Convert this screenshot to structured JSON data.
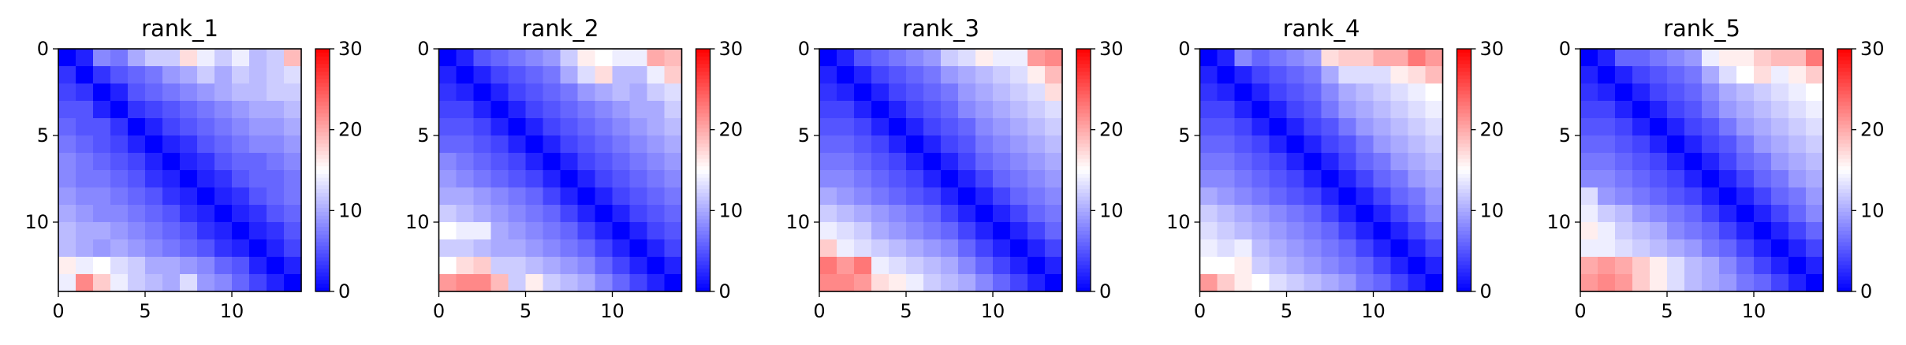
{
  "figure": {
    "panel_count": 5
  },
  "colormap": {
    "name": "bwr",
    "low": "#0000ff",
    "mid": "#ffffff",
    "high": "#ff0000",
    "vmin": 0,
    "vmax": 30
  },
  "chart_data": [
    {
      "type": "heatmap",
      "title": "rank_1",
      "xlabel": "",
      "ylabel": "",
      "x_ticks": [
        0,
        5,
        10
      ],
      "y_ticks": [
        0,
        5,
        10
      ],
      "colorbar_ticks": [
        0,
        10,
        20,
        30
      ],
      "clim": [
        0,
        30
      ],
      "values": [
        [
          0,
          2,
          8,
          7,
          10,
          12,
          12,
          17,
          14,
          12,
          14,
          11,
          12,
          19
        ],
        [
          3,
          0,
          3,
          5,
          6,
          7,
          9,
          10,
          12,
          10,
          12,
          11,
          12,
          13
        ],
        [
          4,
          3,
          0,
          2,
          5,
          6,
          7,
          8,
          9,
          10,
          11,
          11,
          12,
          12
        ],
        [
          5,
          5,
          2,
          0,
          3,
          4,
          5,
          6,
          7,
          8,
          9,
          10,
          10,
          11
        ],
        [
          6,
          5,
          5,
          3,
          0,
          2,
          4,
          5,
          6,
          7,
          8,
          9,
          9,
          10
        ],
        [
          7,
          6,
          5,
          4,
          2,
          0,
          2,
          3,
          5,
          6,
          7,
          8,
          8,
          9
        ],
        [
          8,
          7,
          6,
          5,
          4,
          2,
          0,
          2,
          3,
          5,
          6,
          6,
          7,
          8
        ],
        [
          8,
          7,
          7,
          6,
          5,
          3,
          2,
          0,
          2,
          3,
          5,
          6,
          6,
          7
        ],
        [
          9,
          8,
          8,
          7,
          6,
          5,
          3,
          2,
          0,
          2,
          3,
          5,
          6,
          7
        ],
        [
          10,
          9,
          8,
          8,
          7,
          6,
          5,
          3,
          2,
          0,
          2,
          3,
          5,
          6
        ],
        [
          11,
          10,
          10,
          9,
          8,
          7,
          6,
          5,
          3,
          2,
          0,
          2,
          3,
          5
        ],
        [
          11,
          10,
          9,
          10,
          9,
          8,
          7,
          6,
          5,
          3,
          2,
          0,
          2,
          4
        ],
        [
          16,
          14,
          15,
          13,
          12,
          10,
          10,
          9,
          8,
          6,
          5,
          2,
          0,
          2
        ],
        [
          14,
          22,
          18,
          14,
          12,
          11,
          10,
          13,
          9,
          8,
          6,
          4,
          2,
          0
        ]
      ]
    },
    {
      "type": "heatmap",
      "title": "rank_2",
      "xlabel": "",
      "ylabel": "",
      "x_ticks": [
        0,
        5,
        10
      ],
      "y_ticks": [
        0,
        5,
        10
      ],
      "colorbar_ticks": [
        0,
        10,
        20,
        30
      ],
      "clim": [
        0,
        30
      ],
      "values": [
        [
          0,
          2,
          5,
          6,
          7,
          8,
          9,
          12,
          16,
          15,
          14,
          14,
          20,
          19
        ],
        [
          2,
          0,
          2,
          4,
          5,
          6,
          7,
          10,
          13,
          17,
          11,
          11,
          14,
          18
        ],
        [
          3,
          2,
          0,
          2,
          4,
          5,
          6,
          7,
          9,
          10,
          11,
          10,
          12,
          13
        ],
        [
          4,
          4,
          2,
          0,
          2,
          4,
          5,
          6,
          7,
          8,
          9,
          10,
          10,
          12
        ],
        [
          5,
          5,
          4,
          2,
          0,
          2,
          4,
          5,
          6,
          7,
          8,
          9,
          10,
          11
        ],
        [
          6,
          6,
          5,
          4,
          2,
          0,
          2,
          4,
          5,
          6,
          7,
          8,
          9,
          10
        ],
        [
          8,
          7,
          6,
          5,
          4,
          2,
          0,
          2,
          4,
          5,
          6,
          7,
          8,
          9
        ],
        [
          9,
          8,
          7,
          6,
          5,
          4,
          2,
          0,
          2,
          4,
          5,
          6,
          7,
          8
        ],
        [
          10,
          10,
          9,
          8,
          7,
          6,
          4,
          2,
          0,
          2,
          4,
          5,
          6,
          7
        ],
        [
          12,
          11,
          10,
          9,
          8,
          7,
          6,
          4,
          2,
          0,
          2,
          4,
          5,
          6
        ],
        [
          15,
          14,
          14,
          10,
          9,
          8,
          7,
          6,
          4,
          2,
          0,
          2,
          4,
          5
        ],
        [
          12,
          12,
          11,
          10,
          10,
          9,
          8,
          7,
          6,
          4,
          2,
          0,
          2,
          4
        ],
        [
          15,
          17,
          18,
          12,
          12,
          11,
          10,
          9,
          8,
          6,
          4,
          2,
          0,
          2
        ],
        [
          21,
          22,
          22,
          19,
          12,
          16,
          12,
          11,
          10,
          8,
          6,
          4,
          2,
          0
        ]
      ]
    },
    {
      "type": "heatmap",
      "title": "rank_3",
      "xlabel": "",
      "ylabel": "",
      "x_ticks": [
        0,
        5,
        10
      ],
      "y_ticks": [
        0,
        5,
        10
      ],
      "colorbar_ticks": [
        0,
        10,
        20,
        30
      ],
      "clim": [
        0,
        30
      ],
      "values": [
        [
          0,
          2,
          5,
          6,
          7,
          8,
          9,
          12,
          13,
          16,
          14,
          14,
          21,
          22
        ],
        [
          2,
          0,
          2,
          4,
          5,
          6,
          7,
          9,
          10,
          11,
          12,
          13,
          16,
          19
        ],
        [
          3,
          2,
          0,
          2,
          4,
          5,
          6,
          7,
          9,
          10,
          11,
          12,
          13,
          17
        ],
        [
          4,
          4,
          2,
          0,
          2,
          4,
          5,
          6,
          8,
          9,
          10,
          11,
          12,
          13
        ],
        [
          5,
          5,
          4,
          2,
          0,
          2,
          4,
          5,
          6,
          8,
          9,
          10,
          11,
          12
        ],
        [
          6,
          6,
          5,
          4,
          2,
          0,
          2,
          4,
          5,
          7,
          8,
          9,
          10,
          11
        ],
        [
          7,
          7,
          6,
          5,
          4,
          2,
          0,
          2,
          4,
          6,
          7,
          8,
          9,
          10
        ],
        [
          8,
          8,
          7,
          6,
          5,
          4,
          2,
          0,
          2,
          4,
          6,
          7,
          8,
          9
        ],
        [
          10,
          9,
          8,
          7,
          6,
          5,
          4,
          2,
          0,
          2,
          4,
          6,
          7,
          8
        ],
        [
          12,
          11,
          10,
          9,
          8,
          7,
          6,
          4,
          2,
          0,
          2,
          4,
          6,
          7
        ],
        [
          14,
          13,
          12,
          10,
          9,
          8,
          7,
          6,
          4,
          2,
          0,
          2,
          4,
          6
        ],
        [
          18,
          14,
          13,
          12,
          11,
          10,
          9,
          8,
          6,
          4,
          2,
          0,
          2,
          4
        ],
        [
          23,
          21,
          23,
          14,
          13,
          12,
          11,
          10,
          8,
          6,
          4,
          2,
          0,
          2
        ],
        [
          22,
          22,
          21,
          17,
          16,
          14,
          12,
          11,
          10,
          8,
          6,
          4,
          2,
          0
        ]
      ]
    },
    {
      "type": "heatmap",
      "title": "rank_4",
      "xlabel": "",
      "ylabel": "",
      "x_ticks": [
        0,
        5,
        10
      ],
      "y_ticks": [
        0,
        5,
        10
      ],
      "colorbar_ticks": [
        0,
        10,
        20,
        30
      ],
      "clim": [
        0,
        30
      ],
      "values": [
        [
          0,
          2,
          8,
          6,
          7,
          8,
          9,
          17,
          18,
          18,
          20,
          20,
          23,
          21
        ],
        [
          2,
          0,
          2,
          4,
          5,
          6,
          7,
          10,
          13,
          13,
          13,
          16,
          17,
          19
        ],
        [
          3,
          2,
          0,
          2,
          4,
          5,
          6,
          8,
          10,
          11,
          12,
          13,
          14,
          15
        ],
        [
          4,
          4,
          2,
          0,
          2,
          4,
          5,
          7,
          9,
          10,
          11,
          12,
          13,
          14
        ],
        [
          5,
          5,
          4,
          2,
          0,
          2,
          4,
          5,
          7,
          9,
          10,
          11,
          12,
          13
        ],
        [
          6,
          6,
          5,
          4,
          2,
          0,
          2,
          4,
          5,
          7,
          9,
          10,
          11,
          12
        ],
        [
          7,
          7,
          6,
          5,
          4,
          2,
          0,
          2,
          4,
          6,
          7,
          9,
          10,
          11
        ],
        [
          8,
          8,
          7,
          6,
          5,
          4,
          2,
          0,
          2,
          4,
          6,
          7,
          9,
          10
        ],
        [
          10,
          9,
          8,
          7,
          6,
          5,
          4,
          2,
          0,
          2,
          4,
          6,
          7,
          9
        ],
        [
          12,
          11,
          10,
          9,
          8,
          7,
          6,
          4,
          2,
          0,
          2,
          4,
          6,
          8
        ],
        [
          13,
          12,
          11,
          10,
          9,
          8,
          7,
          6,
          4,
          2,
          0,
          2,
          4,
          6
        ],
        [
          14,
          13,
          14,
          11,
          10,
          9,
          8,
          7,
          6,
          4,
          2,
          0,
          2,
          4
        ],
        [
          15,
          15,
          16,
          12,
          11,
          10,
          9,
          8,
          7,
          6,
          4,
          2,
          0,
          2
        ],
        [
          21,
          18,
          16,
          15,
          13,
          12,
          11,
          10,
          9,
          7,
          6,
          4,
          2,
          0
        ]
      ]
    },
    {
      "type": "heatmap",
      "title": "rank_5",
      "xlabel": "",
      "ylabel": "",
      "x_ticks": [
        0,
        5,
        10
      ],
      "y_ticks": [
        0,
        5,
        10
      ],
      "colorbar_ticks": [
        0,
        10,
        20,
        30
      ],
      "clim": [
        0,
        30
      ],
      "values": [
        [
          0,
          2,
          6,
          6,
          7,
          8,
          9,
          14,
          16,
          16,
          18,
          19,
          19,
          23
        ],
        [
          2,
          0,
          2,
          4,
          5,
          6,
          7,
          10,
          13,
          15,
          17,
          14,
          16,
          18
        ],
        [
          3,
          2,
          0,
          2,
          4,
          5,
          6,
          8,
          10,
          11,
          12,
          13,
          14,
          15
        ],
        [
          4,
          4,
          2,
          0,
          2,
          4,
          5,
          7,
          9,
          10,
          11,
          12,
          13,
          14
        ],
        [
          5,
          5,
          4,
          2,
          0,
          2,
          4,
          5,
          7,
          9,
          10,
          11,
          12,
          13
        ],
        [
          6,
          6,
          5,
          4,
          2,
          0,
          2,
          4,
          5,
          7,
          9,
          10,
          11,
          12
        ],
        [
          7,
          7,
          6,
          5,
          4,
          2,
          0,
          2,
          4,
          6,
          7,
          9,
          10,
          11
        ],
        [
          8,
          8,
          7,
          6,
          5,
          4,
          2,
          0,
          2,
          4,
          6,
          7,
          9,
          10
        ],
        [
          13,
          9,
          8,
          7,
          6,
          5,
          4,
          2,
          0,
          2,
          4,
          6,
          7,
          9
        ],
        [
          14,
          12,
          11,
          9,
          8,
          7,
          6,
          4,
          2,
          0,
          2,
          4,
          6,
          8
        ],
        [
          16,
          14,
          12,
          11,
          10,
          8,
          7,
          6,
          4,
          2,
          0,
          2,
          4,
          6
        ],
        [
          14,
          14,
          13,
          12,
          11,
          10,
          9,
          7,
          6,
          4,
          2,
          0,
          2,
          4
        ],
        [
          20,
          21,
          20,
          18,
          16,
          13,
          11,
          10,
          8,
          6,
          4,
          2,
          0,
          2
        ],
        [
          21,
          22,
          21,
          18,
          16,
          13,
          11,
          10,
          9,
          7,
          6,
          4,
          2,
          0
        ]
      ]
    }
  ]
}
